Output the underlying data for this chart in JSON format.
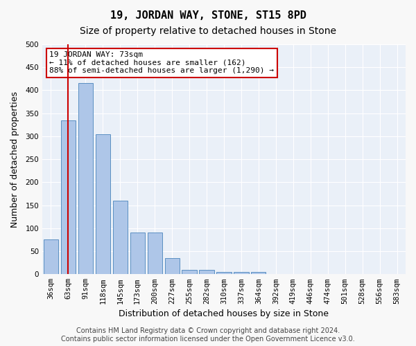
{
  "title": "19, JORDAN WAY, STONE, ST15 8PD",
  "subtitle": "Size of property relative to detached houses in Stone",
  "xlabel": "Distribution of detached houses by size in Stone",
  "ylabel": "Number of detached properties",
  "categories": [
    "36sqm",
    "63sqm",
    "91sqm",
    "118sqm",
    "145sqm",
    "173sqm",
    "200sqm",
    "227sqm",
    "255sqm",
    "282sqm",
    "310sqm",
    "337sqm",
    "364sqm",
    "392sqm",
    "419sqm",
    "446sqm",
    "474sqm",
    "501sqm",
    "528sqm",
    "556sqm",
    "583sqm"
  ],
  "values": [
    75,
    335,
    415,
    305,
    160,
    90,
    90,
    35,
    10,
    10,
    5,
    5,
    5,
    0,
    0,
    0,
    0,
    1,
    0,
    1,
    0
  ],
  "bar_color": "#aec6e8",
  "bar_edge_color": "#5a8fc2",
  "vline_x": 1,
  "vline_color": "#cc0000",
  "annotation_text": "19 JORDAN WAY: 73sqm\n← 11% of detached houses are smaller (162)\n88% of semi-detached houses are larger (1,290) →",
  "annotation_box_color": "#ffffff",
  "annotation_box_edge": "#cc0000",
  "ylim": [
    0,
    500
  ],
  "yticks": [
    0,
    50,
    100,
    150,
    200,
    250,
    300,
    350,
    400,
    450,
    500
  ],
  "footer": "Contains HM Land Registry data © Crown copyright and database right 2024.\nContains public sector information licensed under the Open Government Licence v3.0.",
  "bg_color": "#eaf0f8",
  "plot_bg_color": "#eaf0f8",
  "grid_color": "#ffffff",
  "title_fontsize": 11,
  "subtitle_fontsize": 10,
  "axis_label_fontsize": 9,
  "tick_fontsize": 7.5,
  "annotation_fontsize": 8,
  "footer_fontsize": 7
}
